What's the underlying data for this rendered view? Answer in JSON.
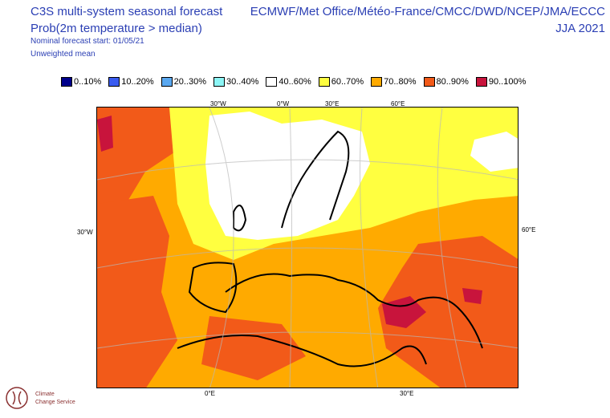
{
  "header": {
    "title": "C3S multi-system seasonal forecast",
    "subtitle": "Prob(2m temperature > median)",
    "start": "Nominal forecast start: 01/05/21",
    "mean": "Unweighted mean",
    "agencies": "ECMWF/Met Office/Météo-France/CMCC/DWD/NCEP/JMA/ECCC",
    "season": "JJA 2021"
  },
  "legend": [
    {
      "label": "0..10%",
      "color": "#00008b"
    },
    {
      "label": "10..20%",
      "color": "#3a5cf0"
    },
    {
      "label": "20..30%",
      "color": "#5aa8f0"
    },
    {
      "label": "30..40%",
      "color": "#8cf5f5"
    },
    {
      "label": "40..60%",
      "color": "#ffffff"
    },
    {
      "label": "60..70%",
      "color": "#ffff40"
    },
    {
      "label": "70..80%",
      "color": "#ffaa00"
    },
    {
      "label": "80..90%",
      "color": "#f25a19"
    },
    {
      "label": "90..100%",
      "color": "#c8143c"
    }
  ],
  "ticks": {
    "top": [
      "30°W",
      "0°W",
      "30°E",
      "60°E"
    ],
    "left": "30°W",
    "right": "60°E",
    "bottom": [
      "0°E",
      "30°E"
    ]
  },
  "logo": {
    "line1": "Climate",
    "line2": "Change Service"
  }
}
